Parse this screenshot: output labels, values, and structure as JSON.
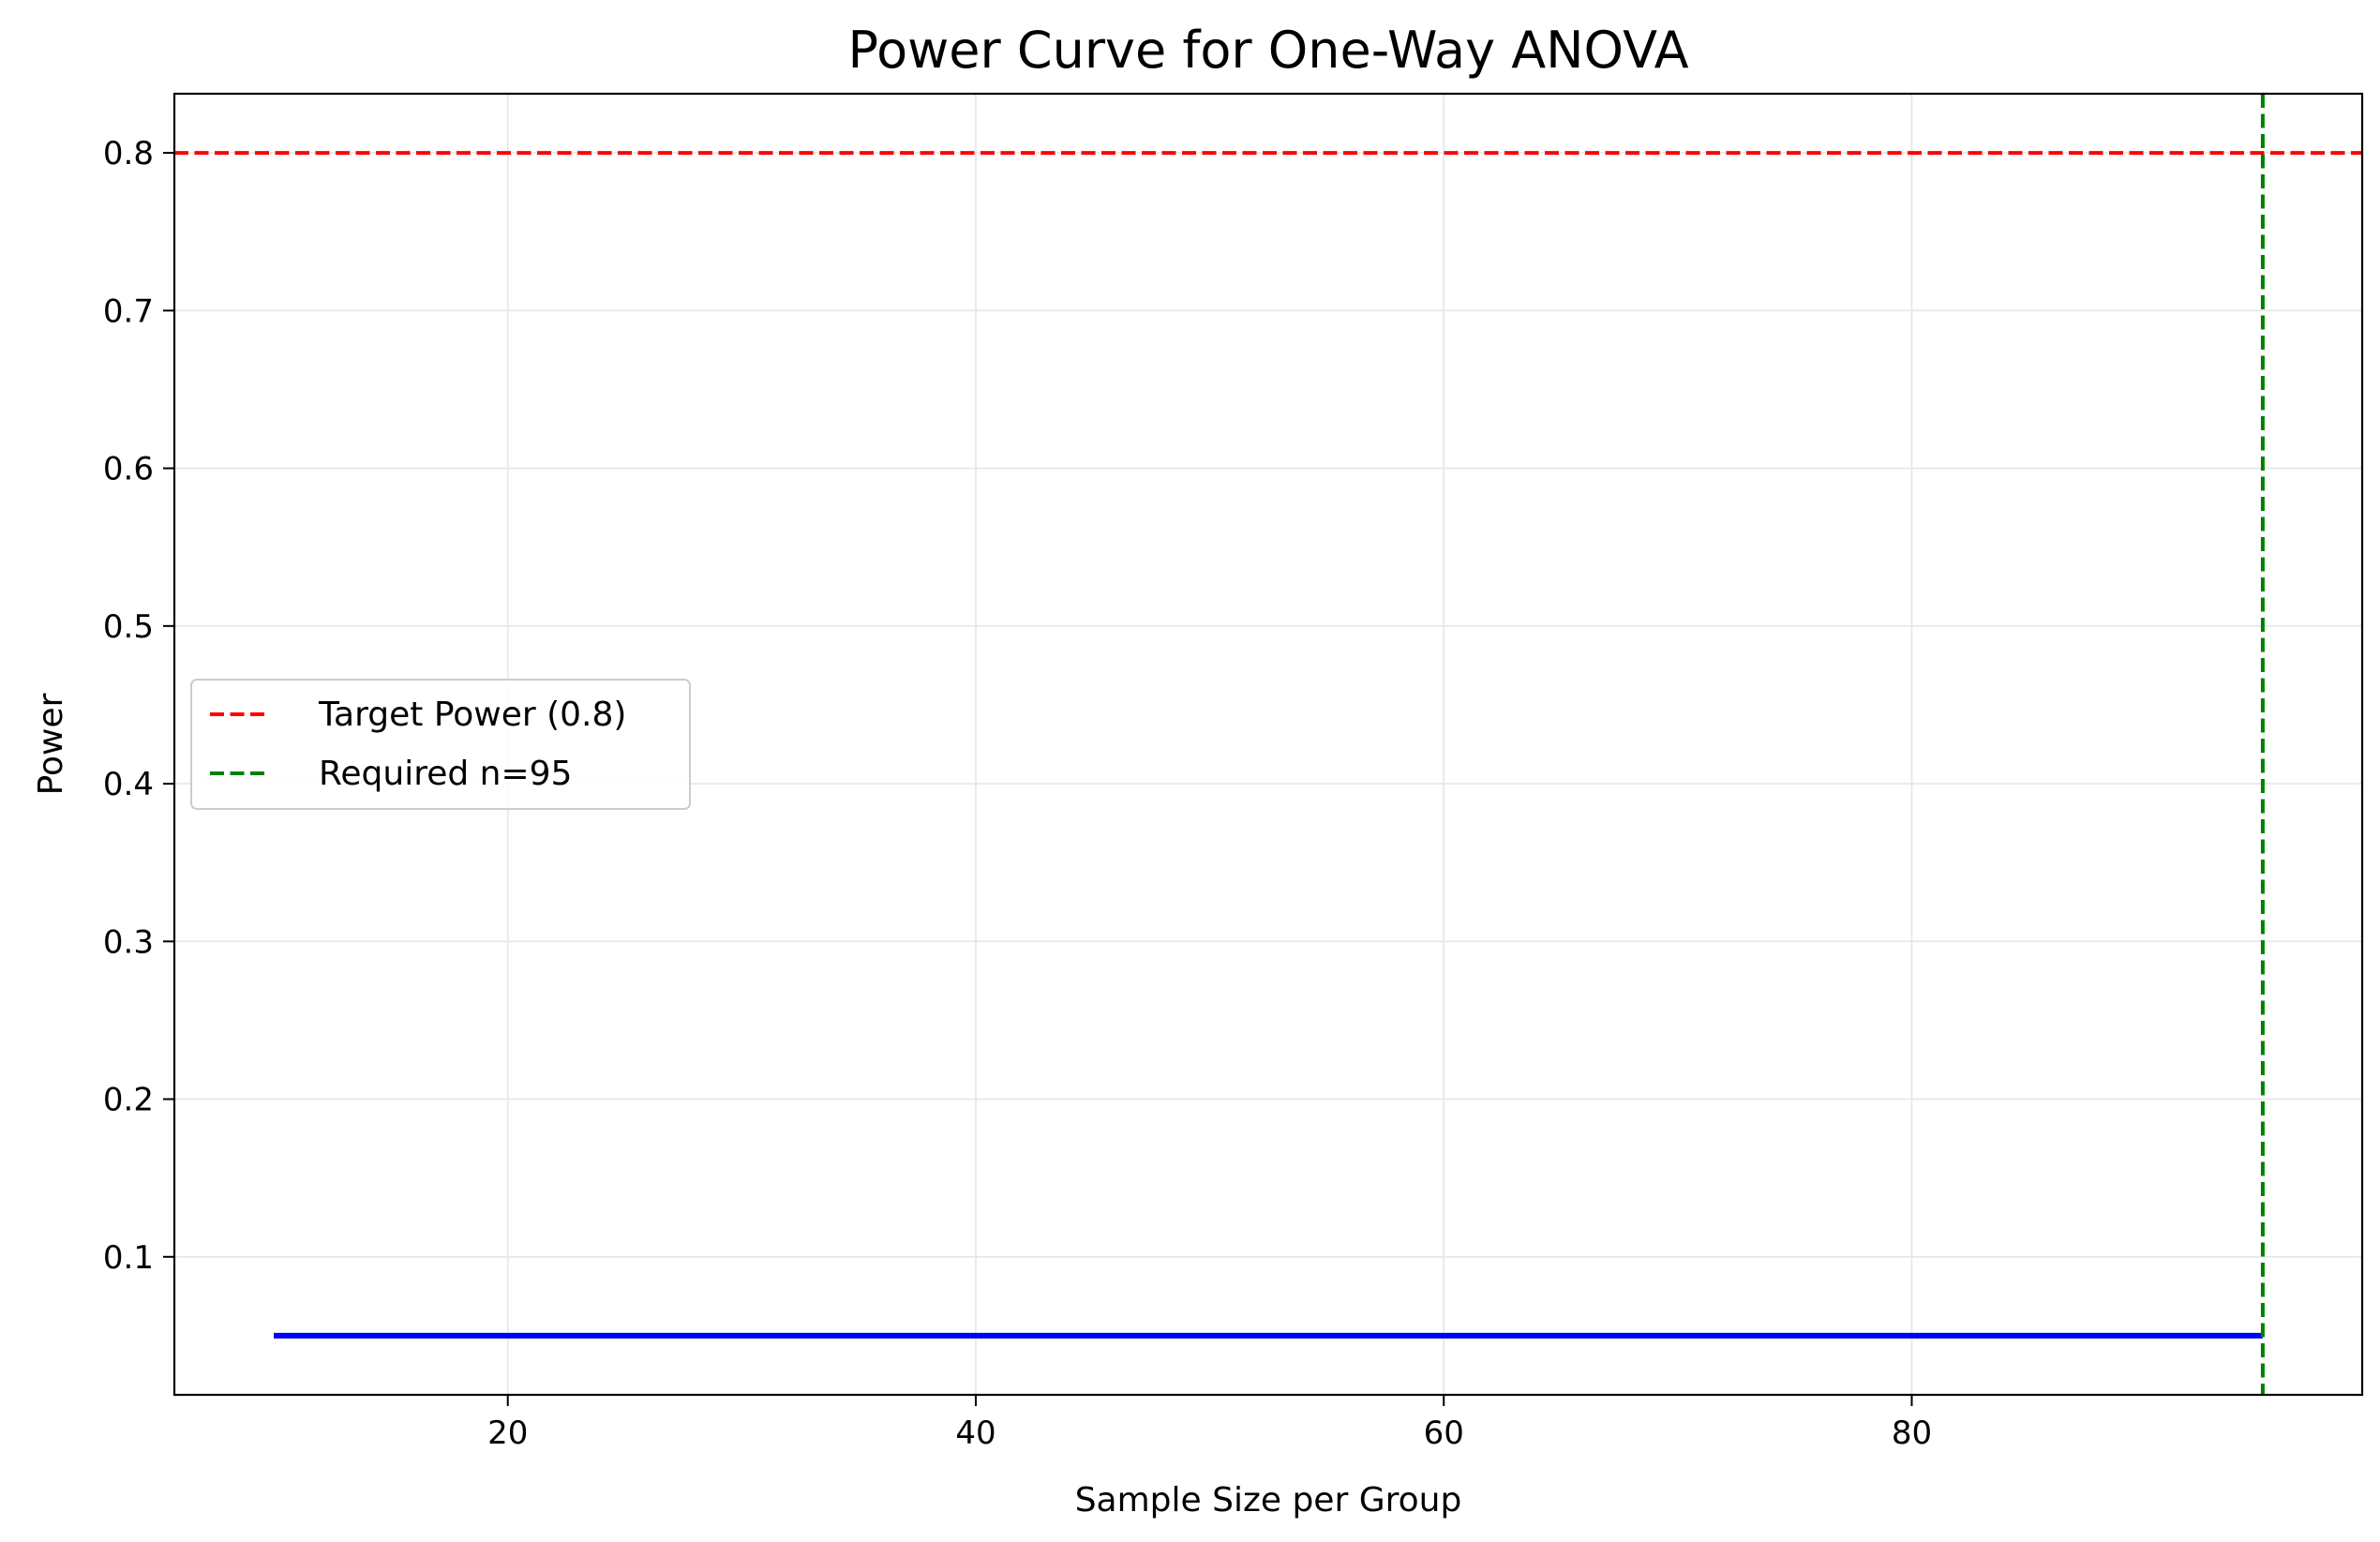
{
  "chart_data": {
    "type": "line",
    "title": "Power Curve for One-Way ANOVA",
    "xlabel": "Sample Size per Group",
    "ylabel": "Power",
    "xlim": [
      5.75,
      99.25
    ],
    "ylim": [
      0.0125,
      0.8375
    ],
    "xticks": [
      20,
      40,
      60,
      80
    ],
    "yticks": [
      0.1,
      0.2,
      0.3,
      0.4,
      0.5,
      0.6,
      0.7,
      0.8
    ],
    "grid": true,
    "legend_position": "center-left",
    "series": [
      {
        "x": [
          10,
          20,
          30,
          40,
          50,
          60,
          70,
          80,
          90,
          95
        ],
        "y": [
          0.05,
          0.05,
          0.05,
          0.05,
          0.05,
          0.05,
          0.05,
          0.05,
          0.05,
          0.05
        ],
        "color": "#0000ff",
        "style": "solid"
      }
    ],
    "reference_lines": [
      {
        "orientation": "horizontal",
        "value": 0.8,
        "name": "Target Power (0.8)",
        "color": "#ff0000",
        "style": "dashed"
      },
      {
        "orientation": "vertical",
        "value": 95,
        "name": "Required n=95",
        "color": "#008000",
        "style": "dashed"
      }
    ]
  }
}
